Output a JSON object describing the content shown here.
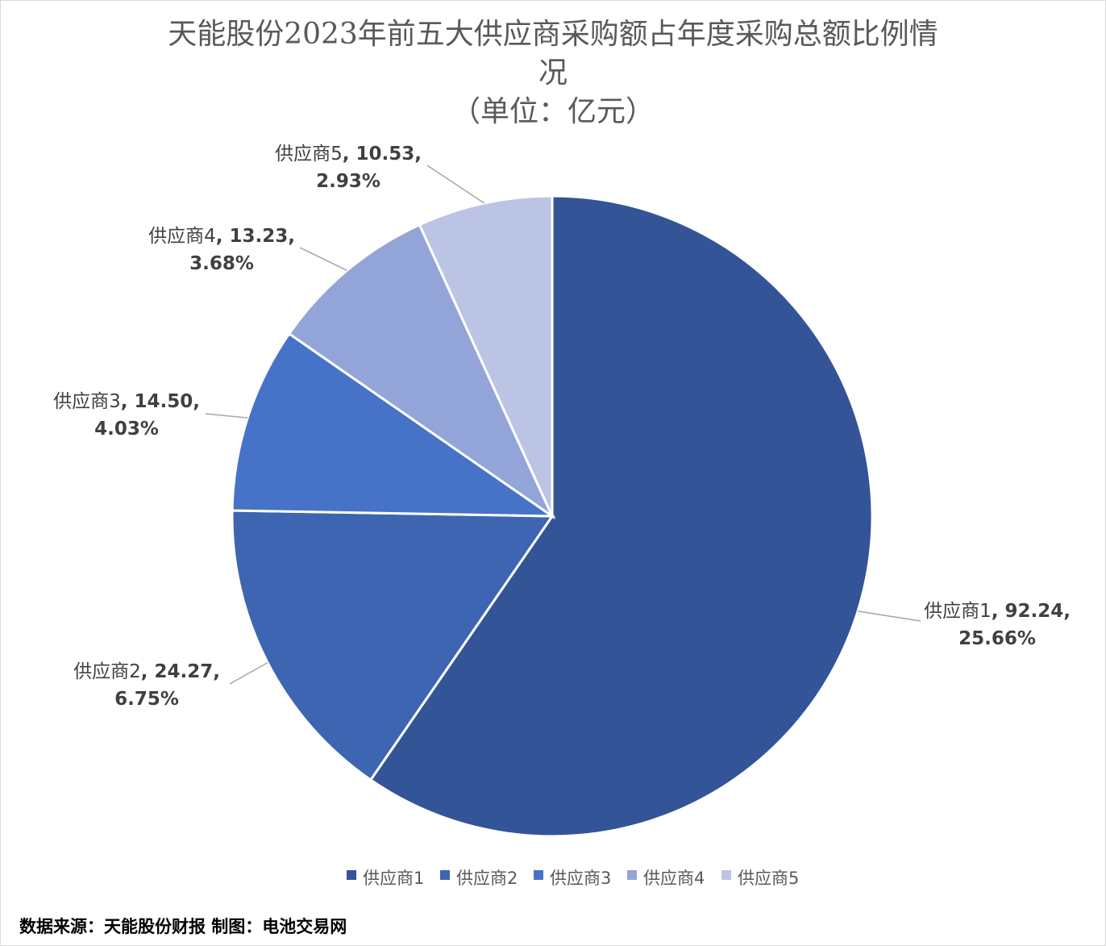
{
  "chart_data": {
    "type": "pie",
    "title_lines": [
      "天能股份2023年前五大供应商采购额占年度采购总额比例情",
      "况",
      "（单位：亿元）"
    ],
    "categories": [
      "供应商1",
      "供应商2",
      "供应商3",
      "供应商4",
      "供应商5"
    ],
    "values": [
      92.24,
      24.27,
      14.5,
      13.23,
      10.53
    ],
    "value_labels": [
      "92.24",
      "24.27",
      "14.50",
      "13.23",
      "10.53"
    ],
    "percent_labels": [
      "25.66%",
      "6.75%",
      "4.03%",
      "3.68%",
      "2.93%"
    ],
    "colors": [
      "#335597",
      "#3d65b2",
      "#4673c8",
      "#93a5d8",
      "#bcc4e5"
    ],
    "legend_position": "bottom",
    "start_angle_deg": 0,
    "direction": "clockwise"
  },
  "source_note": "数据来源：天能股份财报 制图：电池交易网"
}
